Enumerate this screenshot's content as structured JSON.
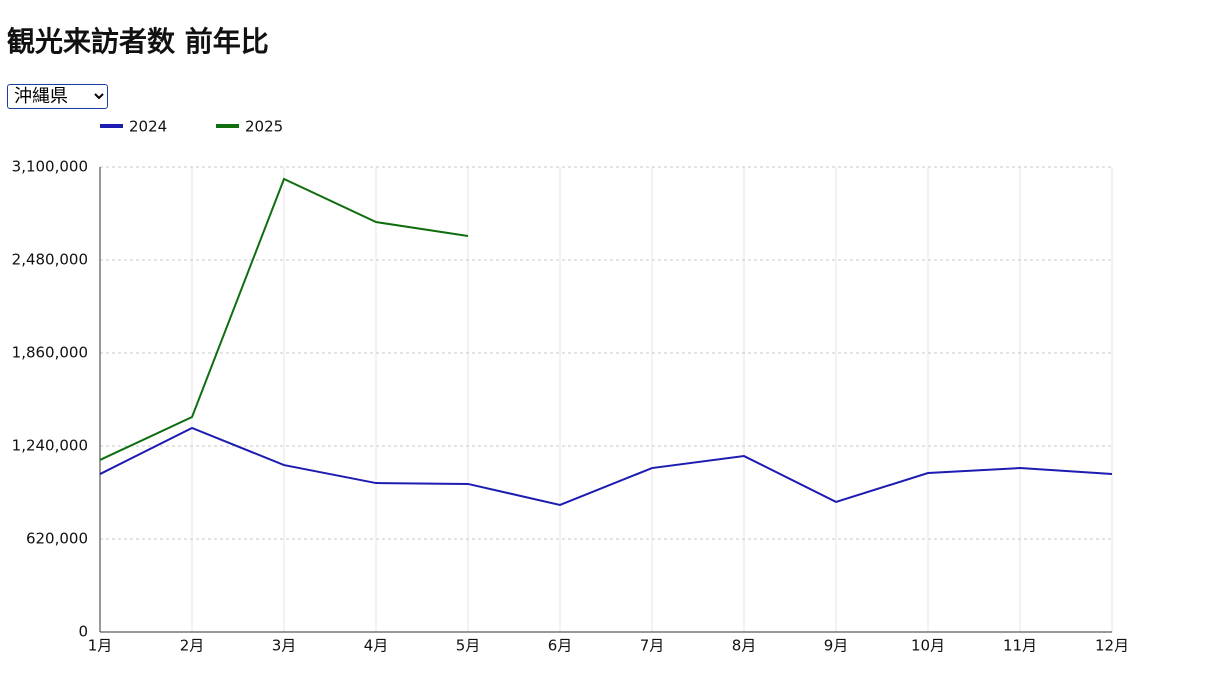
{
  "selector": "沖縄県",
  "chart_data": {
    "type": "line",
    "title": "観光来訪者数 前年比",
    "categories": [
      "1月",
      "2月",
      "3月",
      "4月",
      "5月",
      "6月",
      "7月",
      "8月",
      "9月",
      "10月",
      "11月",
      "12月"
    ],
    "series": [
      {
        "name": "2024",
        "color": "#1c1cb0",
        "values": [
          1053000,
          1360000,
          1113000,
          993000,
          987000,
          847000,
          1093000,
          1173000,
          867000,
          1060000,
          1093000,
          1053000
        ]
      },
      {
        "name": "2025",
        "color": "#0f6e0f",
        "values": [
          1147000,
          1433000,
          3020000,
          2733000,
          2640000,
          null,
          null,
          null,
          null,
          null,
          null,
          null
        ]
      }
    ],
    "ylim": [
      0,
      3100000
    ],
    "yticks": [
      0,
      {
        "value": 620000,
        "label": "620,000"
      },
      {
        "value": 1240000,
        "label": "1,240,000"
      },
      {
        "value": 1860000,
        "label": "1,860,000"
      },
      {
        "value": 2480000,
        "label": "2,480,000"
      },
      {
        "value": 3100000,
        "label": "3,100,000"
      }
    ],
    "grid": true,
    "legend": "top"
  }
}
